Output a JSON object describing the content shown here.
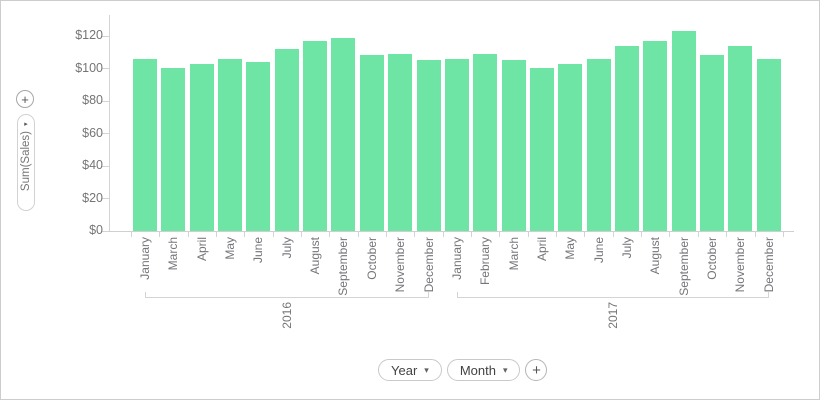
{
  "chart_data": {
    "type": "bar",
    "title": "",
    "ylabel": "Sum(Sales)",
    "bar_color": "#6ee5a5",
    "grid": "off",
    "legend": "none",
    "value_axis": {
      "tick_labels": [
        "$0",
        "$20",
        "$40",
        "$60",
        "$80",
        "$100",
        "$120"
      ],
      "tick_values": [
        0,
        20,
        40,
        60,
        80,
        100,
        120
      ],
      "ylim": [
        0,
        133
      ],
      "unit": "USD"
    },
    "groups": [
      {
        "label": "2016",
        "categories": [
          "January",
          "March",
          "April",
          "May",
          "June",
          "July",
          "August",
          "September",
          "October",
          "November",
          "December"
        ],
        "values": [
          106,
          100,
          103,
          106,
          104,
          112,
          117,
          119,
          108,
          109,
          105
        ]
      },
      {
        "label": "2017",
        "categories": [
          "January",
          "February",
          "March",
          "April",
          "May",
          "June",
          "July",
          "August",
          "September",
          "October",
          "November",
          "December"
        ],
        "values": [
          106,
          109,
          105,
          100,
          103,
          106,
          114,
          117,
          123,
          108,
          114,
          106
        ]
      }
    ]
  },
  "left_panel": {
    "add_button_label": "+",
    "field_pill": {
      "label": "Sum(Sales)",
      "expand_arrow": "▸"
    }
  },
  "bottom_controls": {
    "year_button": {
      "label": "Year",
      "caret": "▾"
    },
    "month_button": {
      "label": "Month",
      "caret": "▾"
    },
    "add_button_label": "+"
  }
}
